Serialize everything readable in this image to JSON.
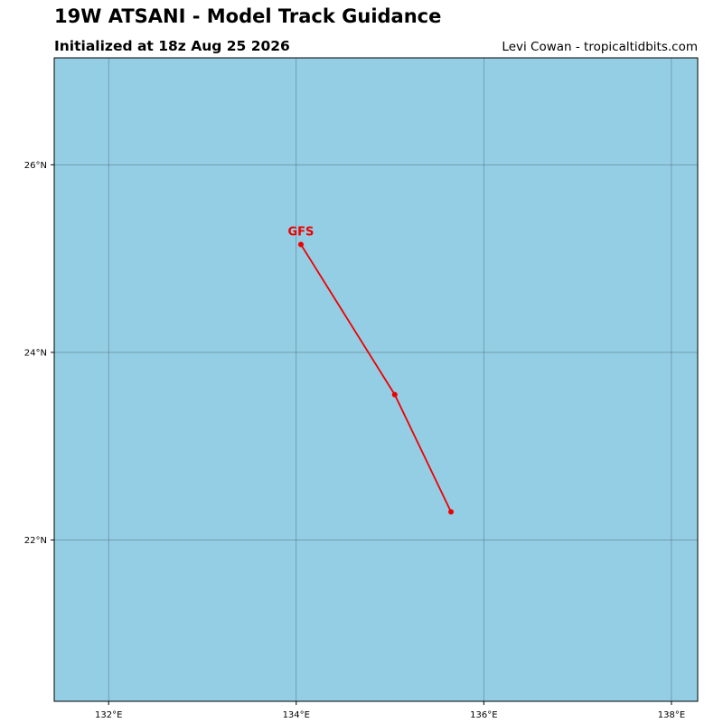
{
  "header": {
    "title": "19W ATSANI - Model Track Guidance",
    "subtitle": "Initialized at 18z Aug 25 2026",
    "credit": "Levi Cowan - tropicaltidbits.com"
  },
  "map": {
    "ocean_color": "#94cee4",
    "grid_color": "#4a6a74",
    "frame_color": "#000000",
    "lon_range": [
      131.42,
      138.28
    ],
    "lat_range": [
      20.28,
      27.14
    ],
    "lon_ticks": [
      {
        "value": 132,
        "label": "132°E"
      },
      {
        "value": 134,
        "label": "134°E"
      },
      {
        "value": 136,
        "label": "136°E"
      },
      {
        "value": 138,
        "label": "138°E"
      }
    ],
    "lat_ticks": [
      {
        "value": 22,
        "label": "22°N"
      },
      {
        "value": 24,
        "label": "24°N"
      },
      {
        "value": 26,
        "label": "26°N"
      }
    ]
  },
  "chart_data": {
    "type": "line",
    "xlabel": "",
    "ylabel": "",
    "xlim": [
      131.42,
      138.28
    ],
    "ylim": [
      20.28,
      27.14
    ],
    "grid": true,
    "series": [
      {
        "name": "GFS",
        "color": "#ee0000",
        "points": [
          {
            "lon": 134.05,
            "lat": 25.15
          },
          {
            "lon": 135.05,
            "lat": 23.55
          },
          {
            "lon": 135.65,
            "lat": 22.3
          }
        ]
      }
    ]
  }
}
